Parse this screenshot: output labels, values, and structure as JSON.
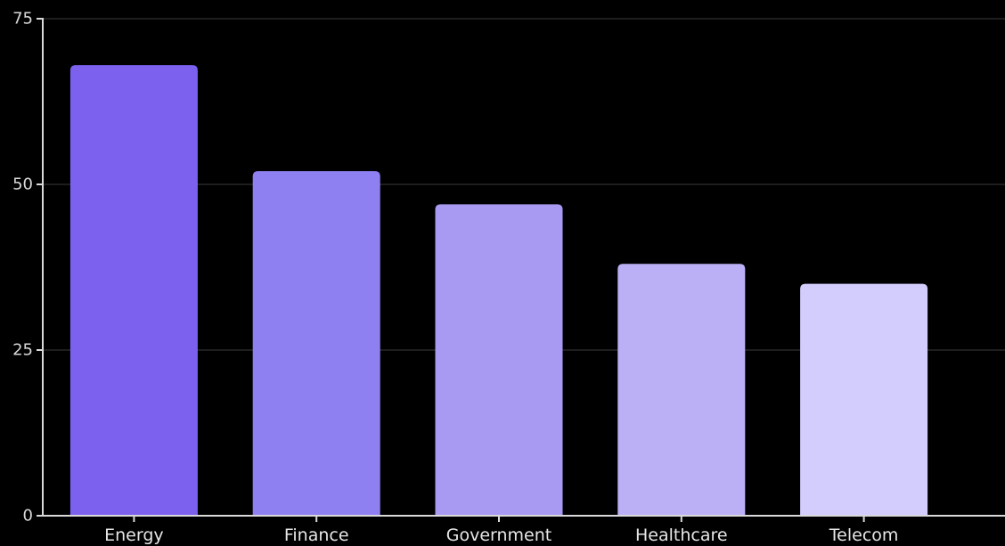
{
  "chart_data": {
    "type": "bar",
    "title": "",
    "xlabel": "",
    "ylabel": "",
    "categories": [
      "Energy",
      "Finance",
      "Government",
      "Healthcare",
      "Telecom"
    ],
    "values": [
      68,
      52,
      47,
      38,
      35
    ],
    "ylim": [
      0,
      75
    ],
    "yticks": [
      0,
      25,
      50,
      75
    ],
    "ytick_labels": [
      "0",
      "25",
      "50",
      "75"
    ],
    "grid": true,
    "legend": "none",
    "colors": [
      "#7b61ee",
      "#8f80f2",
      "#a89af3",
      "#bbb0f6",
      "#d3cdfd"
    ],
    "background": "#000000",
    "axis_color": "#d9d9d9",
    "grid_color": "#3a3a3a"
  }
}
